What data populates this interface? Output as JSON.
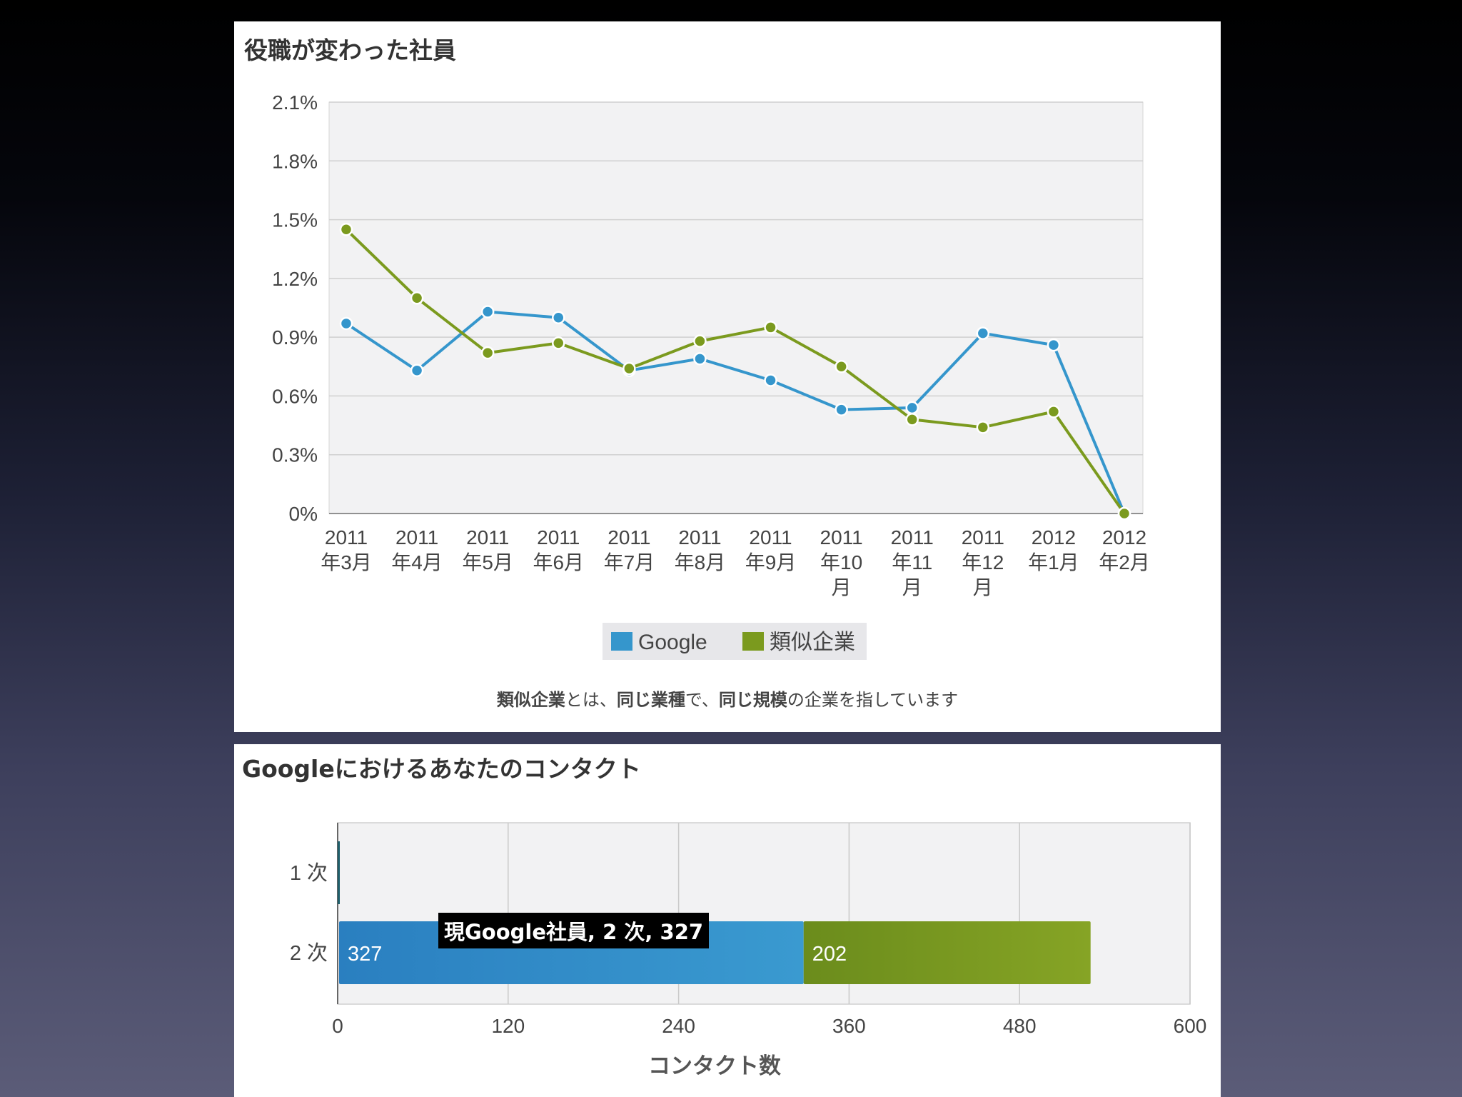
{
  "chart_data": [
    {
      "type": "line",
      "title": "役職が変わった社員",
      "categories": [
        "2011年3月",
        "2011年4月",
        "2011年5月",
        "2011年6月",
        "2011年7月",
        "2011年8月",
        "2011年9月",
        "2011年10月",
        "2011年11月",
        "2011年12月",
        "2012年1月",
        "2012年2月"
      ],
      "category_lines": [
        [
          "2011",
          "年3月"
        ],
        [
          "2011",
          "年4月"
        ],
        [
          "2011",
          "年5月"
        ],
        [
          "2011",
          "年6月"
        ],
        [
          "2011",
          "年7月"
        ],
        [
          "2011",
          "年8月"
        ],
        [
          "2011",
          "年9月"
        ],
        [
          "2011",
          "年10",
          "月"
        ],
        [
          "2011",
          "年11",
          "月"
        ],
        [
          "2011",
          "年12",
          "月"
        ],
        [
          "2012",
          "年1月"
        ],
        [
          "2012",
          "年2月"
        ]
      ],
      "series": [
        {
          "name": "Google",
          "color": "#3596cc",
          "values": [
            0.97,
            0.73,
            1.03,
            1.0,
            0.73,
            0.79,
            0.68,
            0.53,
            0.54,
            0.92,
            0.86,
            0.0
          ]
        },
        {
          "name": "類似企業",
          "color": "#7b9a1e",
          "values": [
            1.45,
            1.1,
            0.82,
            0.87,
            0.74,
            0.88,
            0.95,
            0.75,
            0.48,
            0.44,
            0.52,
            0.0
          ]
        }
      ],
      "ylim": [
        0,
        2.1
      ],
      "yticks": [
        "0%",
        "0.3%",
        "0.6%",
        "0.9%",
        "1.2%",
        "1.5%",
        "1.8%",
        "2.1%"
      ],
      "ytick_values": [
        0,
        0.3,
        0.6,
        0.9,
        1.2,
        1.5,
        1.8,
        2.1
      ],
      "grid": true,
      "legend": "bottom",
      "note_parts": [
        {
          "text": "類似企業",
          "bold": true
        },
        {
          "text": "とは、",
          "bold": false
        },
        {
          "text": "同じ業種",
          "bold": true
        },
        {
          "text": "で、",
          "bold": false
        },
        {
          "text": "同じ規模",
          "bold": true
        },
        {
          "text": "の企業を指しています",
          "bold": false
        }
      ]
    },
    {
      "type": "bar",
      "orientation": "horizontal",
      "stacked": true,
      "title": "Googleにおけるあなたのコンタクト",
      "categories": [
        "1 次",
        "2 次"
      ],
      "series": [
        {
          "name": "現Google社員",
          "color": "#2f8dc6",
          "values": [
            1,
            327
          ]
        },
        {
          "values": [
            0,
            202
          ],
          "color": "#7a9a22"
        }
      ],
      "data_labels": [
        "327",
        "202"
      ],
      "xlim": [
        0,
        600
      ],
      "xticks": [
        "0",
        "120",
        "240",
        "360",
        "480",
        "600"
      ],
      "xtick_values": [
        0,
        120,
        240,
        360,
        480,
        600
      ],
      "xlabel": "コンタクト数",
      "grid": true,
      "tooltip": "現Google社員, 2 次, 327"
    }
  ]
}
